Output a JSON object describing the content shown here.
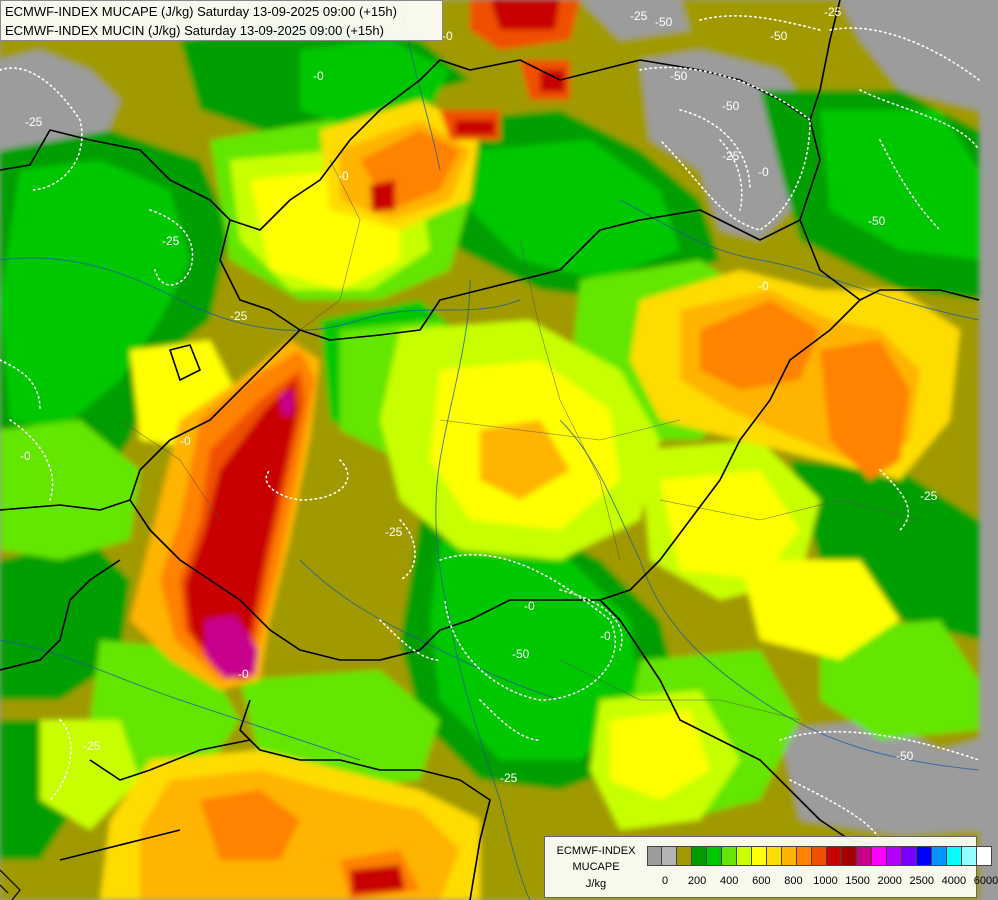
{
  "header": {
    "line1": "ECMWF-INDEX MUCAPE (J/kg) Saturday 13-09-2025 09:00 (+15h)",
    "line2": "ECMWF-INDEX MUCIN (J/kg) Saturday 13-09-2025 09:00 (+15h)"
  },
  "legend": {
    "source": "ECMWF-INDEX",
    "variable": "MUCAPE",
    "unit": "J/kg",
    "colors": [
      "#9c9c9c",
      "#b4b4b4",
      "#a09a00",
      "#009e00",
      "#00c800",
      "#64e600",
      "#c8ff00",
      "#ffff00",
      "#ffdc00",
      "#ffb400",
      "#ff8200",
      "#f05000",
      "#c80000",
      "#a00000",
      "#c8008c",
      "#ff00ff",
      "#b400ff",
      "#7800ff",
      "#0000ff",
      "#0096ff",
      "#00ffff",
      "#96ffff",
      "#ffffff"
    ],
    "ticks": [
      "0",
      "200",
      "400",
      "600",
      "800",
      "1000",
      "1500",
      "2000",
      "2500",
      "4000",
      "6000"
    ]
  },
  "cin_labels": [
    "-50",
    "-0",
    "-0",
    "-25",
    "-50",
    "-25",
    "-50",
    "-50",
    "-25",
    "-0",
    "-0",
    "-0",
    "-0",
    "-25",
    "-50",
    "-25",
    "-25",
    "-0",
    "-0",
    "-50",
    "-25",
    "-25",
    "-50",
    "-0",
    "-0",
    "-25",
    "-25"
  ]
}
